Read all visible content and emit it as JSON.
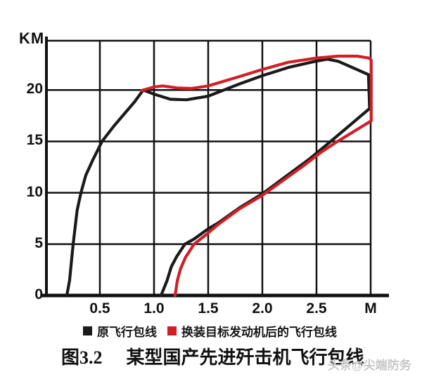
{
  "axes": {
    "y_unit": "KM",
    "y_tick_labels": [
      "0",
      "5",
      "10",
      "15",
      "20"
    ],
    "x_tick_labels": [
      "0.5",
      "1.0",
      "1.5",
      "2.0",
      "2.5",
      "M"
    ]
  },
  "legend": {
    "items": [
      {
        "label": "原飞行包线",
        "color": "#1a1a1a"
      },
      {
        "label": "换装目标发动机后的飞行包线",
        "color": "#d01f27"
      }
    ]
  },
  "caption": {
    "number": "图3.2",
    "text": "某型国产先进歼击机飞行包线"
  },
  "watermark": "头条@尖端防务",
  "chart_data": {
    "type": "line",
    "title": "图3.2 某型国产先进歼击机飞行包线",
    "xlabel": "M",
    "ylabel": "KM",
    "xlim": [
      0,
      3.0
    ],
    "ylim": [
      0,
      24.8
    ],
    "grid": true,
    "legend_position": "bottom",
    "x_tick_values": [
      0.5,
      1.0,
      1.5,
      2.0,
      2.5,
      3.0
    ],
    "y_tick_values": [
      0,
      5,
      10,
      15,
      20
    ],
    "colors": {
      "grid": "#111111",
      "axis": "#111111"
    },
    "series": [
      {
        "name": "原飞行包线",
        "color": "#1a1a1a",
        "points": [
          [
            0.195,
            0.0
          ],
          [
            0.22,
            1.45
          ],
          [
            0.253,
            5.0
          ],
          [
            0.29,
            8.3
          ],
          [
            0.325,
            10.0
          ],
          [
            0.37,
            11.7
          ],
          [
            0.435,
            13.2
          ],
          [
            0.52,
            15.0
          ],
          [
            0.63,
            16.5
          ],
          [
            0.735,
            17.8
          ],
          [
            0.82,
            18.85
          ],
          [
            0.9,
            20.0
          ],
          [
            1.0,
            19.6
          ],
          [
            1.15,
            19.1
          ],
          [
            1.3,
            19.05
          ],
          [
            1.5,
            19.4
          ],
          [
            1.79,
            20.6
          ],
          [
            2.0,
            21.4
          ],
          [
            2.24,
            22.2
          ],
          [
            2.49,
            22.8
          ],
          [
            2.6,
            23.0
          ],
          [
            2.7,
            22.8
          ],
          [
            2.98,
            21.5
          ],
          [
            2.99,
            18.2
          ],
          [
            2.62,
            14.9
          ],
          [
            2.43,
            13.25
          ],
          [
            2.0,
            9.9
          ],
          [
            1.79,
            8.55
          ],
          [
            1.59,
            7.05
          ],
          [
            1.5,
            6.5
          ],
          [
            1.37,
            5.5
          ],
          [
            1.285,
            5.0
          ],
          [
            1.21,
            3.8
          ],
          [
            1.16,
            2.8
          ],
          [
            1.12,
            1.45
          ],
          [
            1.065,
            0.0
          ]
        ]
      },
      {
        "name": "换装目标发动机后的飞行包线",
        "color": "#d01f27",
        "points": [
          [
            0.885,
            19.95
          ],
          [
            1.0,
            20.3
          ],
          [
            1.08,
            20.4
          ],
          [
            1.215,
            20.2
          ],
          [
            1.345,
            20.15
          ],
          [
            1.5,
            20.4
          ],
          [
            1.785,
            21.3
          ],
          [
            2.0,
            22.0
          ],
          [
            2.24,
            22.7
          ],
          [
            2.49,
            23.1
          ],
          [
            2.7,
            23.3
          ],
          [
            2.875,
            23.3
          ],
          [
            2.99,
            23.1
          ],
          [
            3.005,
            22.9
          ],
          [
            3.005,
            17.0
          ],
          [
            2.68,
            14.9
          ],
          [
            2.55,
            14.0
          ],
          [
            2.37,
            12.55
          ],
          [
            2.0,
            9.75
          ],
          [
            1.785,
            8.4
          ],
          [
            1.59,
            6.9
          ],
          [
            1.49,
            6.0
          ],
          [
            1.37,
            5.0
          ],
          [
            1.29,
            3.7
          ],
          [
            1.245,
            2.6
          ],
          [
            1.215,
            1.45
          ],
          [
            1.195,
            0.0
          ]
        ]
      }
    ]
  }
}
